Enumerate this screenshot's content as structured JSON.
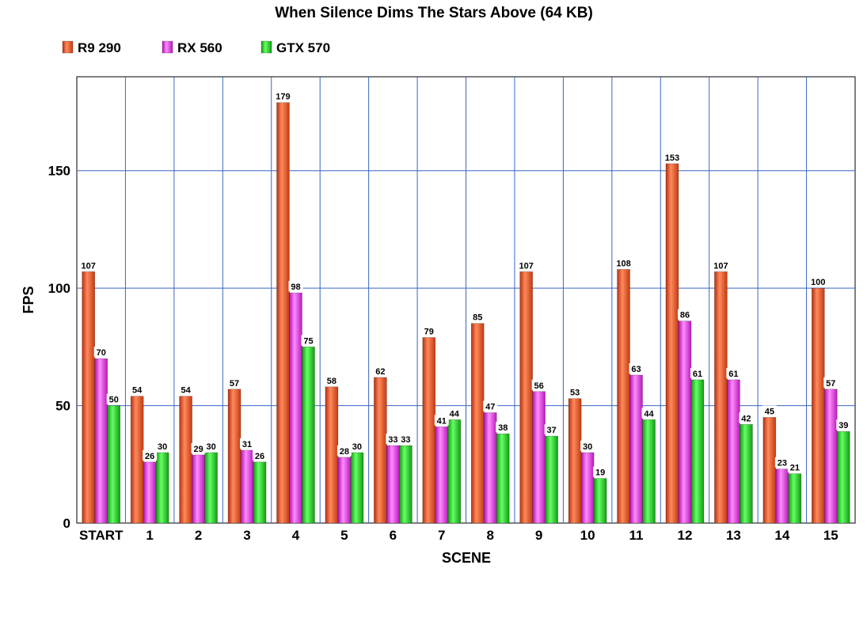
{
  "chart_data": {
    "type": "bar",
    "title": "When Silence Dims The Stars Above (64 KB)",
    "xlabel": "SCENE",
    "ylabel": "FPS",
    "ylim": [
      0,
      190
    ],
    "yticks": [
      0,
      50,
      100,
      150
    ],
    "grid": true,
    "legend_position": "top-left",
    "categories": [
      "START",
      "1",
      "2",
      "3",
      "4",
      "5",
      "6",
      "7",
      "8",
      "9",
      "10",
      "11",
      "12",
      "13",
      "14",
      "15"
    ],
    "series": [
      {
        "name": "R9 290",
        "color": "#e8552a",
        "values": [
          107,
          54,
          54,
          57,
          179,
          58,
          62,
          79,
          85,
          107,
          53,
          108,
          153,
          107,
          45,
          100
        ]
      },
      {
        "name": "RX 560",
        "color": "#e33be3",
        "values": [
          70,
          26,
          29,
          31,
          98,
          28,
          33,
          41,
          47,
          56,
          30,
          63,
          86,
          61,
          23,
          57
        ]
      },
      {
        "name": "GTX 570",
        "color": "#22c422",
        "values": [
          50,
          30,
          30,
          26,
          75,
          30,
          33,
          44,
          38,
          37,
          19,
          44,
          61,
          42,
          21,
          39
        ]
      }
    ]
  }
}
